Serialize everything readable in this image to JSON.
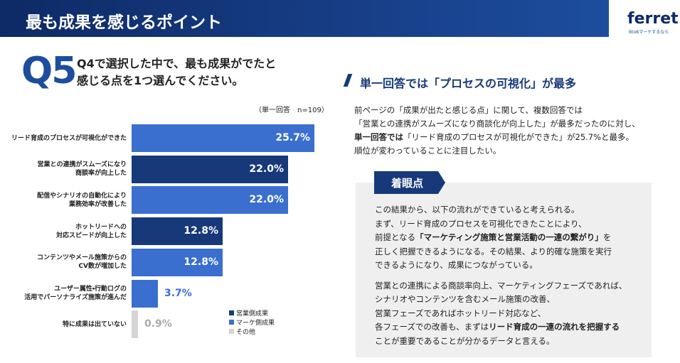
{
  "header": {
    "title": "最も成果を感じるポイント",
    "logo": "ferret",
    "logo_sub": "BtoBマーケするなら"
  },
  "question": {
    "number": "Q5",
    "text": "Q4で選択した中で、最も成果がでたと\n感じる点を1つ選んでください。"
  },
  "chart_data": {
    "type": "hbar",
    "note": "（単一回答　n=109）",
    "categories": [
      "リード育成のプロセスが可視化ができた",
      "営業との連携がスムーズになり\n商談率が向上した",
      "配信やシナリオの自動化により\n業務効率が改善した",
      "ホットリードへの\n対応スピードが向上した",
      "コンテンツやメール施策からの\nCV数が増加した",
      "ユーザー属性・行動ログの\n活用でパーソナライズ施策が進んだ",
      "特に成果は出ていない"
    ],
    "values": [
      25.7,
      22.0,
      22.0,
      12.8,
      12.8,
      3.7,
      0.9
    ],
    "value_labels": [
      "25.7%",
      "22.0%",
      "22.0%",
      "12.8%",
      "12.8%",
      "3.7%",
      "0.9%"
    ],
    "colors": [
      "#3a6fcf",
      "#17397a",
      "#3a6fcf",
      "#17397a",
      "#3a6fcf",
      "#3a6fcf",
      "#d4d4d4"
    ],
    "legend": [
      {
        "name": "営業側成果",
        "color": "#17397a"
      },
      {
        "name": "マーケ側成果",
        "color": "#3a6fcf"
      },
      {
        "name": "その他",
        "color": "#d4d4d4"
      }
    ]
  },
  "summary": {
    "heading": "単一回答では「プロセスの可視化」が最多",
    "lines": [
      [
        {
          "text": "前ページの「成果が出たと感じる点」に関して、複数回答では"
        }
      ],
      [
        {
          "text": "「営業との連携がスムーズになり商談化が向上した」が最多だったのに対し、"
        }
      ],
      [
        {
          "text": "単一回答では",
          "bold": true
        },
        {
          "text": "「リード育成のプロセスが可視化ができた」が25.7%と最多。"
        }
      ],
      [
        {
          "text": "順位が変わっていることに注目したい。"
        }
      ]
    ]
  },
  "insight": {
    "title": "着眼点",
    "paragraphs": [
      [
        [
          {
            "text": "この結果から、以下の流れができていると考えられる。"
          }
        ],
        [
          {
            "text": "まず、リード育成のプロセスを可視化できたことにより、"
          }
        ],
        [
          {
            "text": "前提となる"
          },
          {
            "text": "「マーケティング施策と営業活動の一連の繋がり」",
            "bold": true
          },
          {
            "text": "を"
          }
        ],
        [
          {
            "text": "正しく把握できるようになる。その結果、より的確な施策を実行"
          }
        ],
        [
          {
            "text": "できるようになり、成果につながっている。"
          }
        ]
      ],
      [
        [
          {
            "text": "営業との連携による商談率向上、マーケティングフェーズであれば、"
          }
        ],
        [
          {
            "text": "シナリオやコンテンツを含むメール施策の改善、"
          }
        ],
        [
          {
            "text": "営業フェーズであればホットリード対応など、"
          }
        ],
        [
          {
            "text": "各フェーズでの改善も、まずは"
          },
          {
            "text": "リード育成の一連の流れを把握する",
            "bold": true
          }
        ],
        [
          {
            "text": "ことが重要であることが分かるデータと言える。"
          }
        ]
      ]
    ]
  }
}
